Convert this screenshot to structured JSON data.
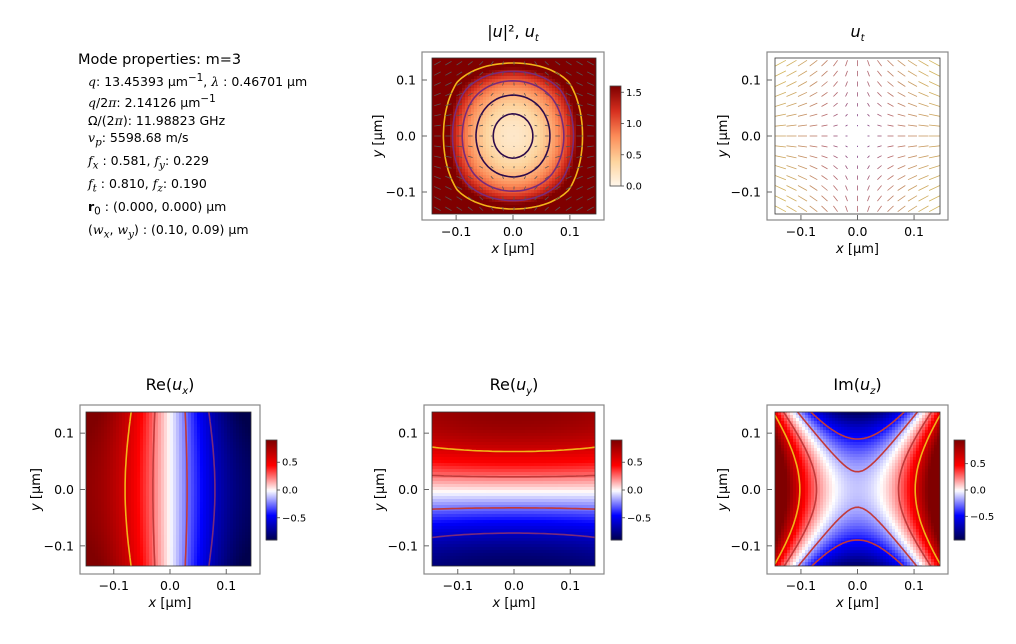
{
  "mode_properties": {
    "heading": "Mode properties: m=3",
    "rows": [
      {
        "html": "<i>q</i>: 13.45393 μm<sup>−1</sup>, <i>λ</i> :  0.46701 μm"
      },
      {
        "html": "<i>q</i>/2<i>π</i>: 2.14126 μm<sup>−1</sup>"
      },
      {
        "html": "Ω/(2<i>π</i>): 11.98823 GHz"
      },
      {
        "html": "<i>v<sub>p</sub></i>: 5598.68 m/s"
      },
      {
        "html": "<i>f<sub>x</sub></i> :  0.581, <i>f<sub>y</sub></i>: 0.229"
      },
      {
        "html": "<i>f<sub>t</sub></i> :  0.810, <i>f<sub>z</sub></i>: 0.190"
      },
      {
        "html": "<b>r</b><sub>0</sub> :  (0.000, 0.000) μm"
      },
      {
        "html": "(<i>w<sub>x</sub></i>, <i>w<sub>y</sub></i>) :  (0.10, 0.09) μm"
      }
    ]
  },
  "colors": {
    "hot_stops": [
      "#fff7ec",
      "#fdd49e",
      "#fc8d59",
      "#d7301f",
      "#7f0000"
    ],
    "seismic_stops": [
      "#00004c",
      "#0000ff",
      "#ffffff",
      "#ff0000",
      "#800000"
    ],
    "contour_a": "#2c0a4a",
    "contour_b": "#7a2a7a",
    "contour_c": "#c23a3a",
    "contour_d": "#f2b418"
  },
  "chart_data": [
    {
      "type": "heatmap",
      "field": "intensity",
      "title": "|u|², u_t",
      "title_html": "|<tspan font-style='italic'>u</tspan>|², <tspan font-style='italic'>u</tspan><tspan font-size='10' dy='4' font-style='italic'>t</tspan>",
      "xlabel": "x [μm]",
      "ylabel": "y [μm]",
      "xlim": [
        -0.16,
        0.16
      ],
      "ylim": [
        -0.15,
        0.15
      ],
      "xticks": [
        "−0.1",
        "0.0",
        "0.1"
      ],
      "xtick_values": [
        -0.1,
        0.0,
        0.1
      ],
      "yticks": [
        "−0.1",
        "0.0",
        "0.1"
      ],
      "ytick_values": [
        -0.1,
        0.0,
        0.1
      ],
      "colorbar": {
        "range": [
          0,
          1.6
        ],
        "ticks": [
          "0.0",
          "0.5",
          "1.0",
          "1.5"
        ],
        "tick_values": [
          0,
          0.5,
          1.0,
          1.5
        ]
      }
    },
    {
      "type": "quiver",
      "field": "transverse",
      "title": "u_t",
      "title_html": "<tspan font-style='italic'>u</tspan><tspan font-size='10' dy='4' font-style='italic'>t</tspan>",
      "xlabel": "x [μm]",
      "ylabel": "y [μm]",
      "xlim": [
        -0.16,
        0.16
      ],
      "ylim": [
        -0.15,
        0.15
      ],
      "xticks": [
        "−0.1",
        "0.0",
        "0.1"
      ],
      "xtick_values": [
        -0.1,
        0.0,
        0.1
      ],
      "yticks": [
        "−0.1",
        "0.0",
        "0.1"
      ],
      "ytick_values": [
        -0.1,
        0.0,
        0.1
      ]
    },
    {
      "type": "heatmap",
      "field": "re_ux",
      "title": "Re(u_x)",
      "title_html": "Re(<tspan font-style='italic'>u</tspan><tspan font-size='10' dy='4' font-style='italic'>x</tspan><tspan dy='-4'>)</tspan>",
      "xlabel": "x [μm]",
      "ylabel": "y [μm]",
      "xlim": [
        -0.16,
        0.16
      ],
      "ylim": [
        -0.15,
        0.15
      ],
      "xticks": [
        "−0.1",
        "0.0",
        "0.1"
      ],
      "xtick_values": [
        -0.1,
        0.0,
        0.1
      ],
      "yticks": [
        "−0.1",
        "0.0",
        "0.1"
      ],
      "ytick_values": [
        -0.1,
        0.0,
        0.1
      ],
      "colorbar": {
        "range": [
          -0.9,
          0.9
        ],
        "ticks": [
          "−0.5",
          "0.0",
          "0.5"
        ],
        "tick_values": [
          -0.5,
          0,
          0.5
        ]
      }
    },
    {
      "type": "heatmap",
      "field": "re_uy",
      "title": "Re(u_y)",
      "title_html": "Re(<tspan font-style='italic'>u</tspan><tspan font-size='10' dy='4' font-style='italic'>y</tspan><tspan dy='-4'>)</tspan>",
      "xlabel": "x [μm]",
      "ylabel": "y [μm]",
      "xlim": [
        -0.16,
        0.16
      ],
      "ylim": [
        -0.15,
        0.15
      ],
      "xticks": [
        "−0.1",
        "0.0",
        "0.1"
      ],
      "xtick_values": [
        -0.1,
        0.0,
        0.1
      ],
      "yticks": [
        "−0.1",
        "0.0",
        "0.1"
      ],
      "ytick_values": [
        -0.1,
        0.0,
        0.1
      ],
      "colorbar": {
        "range": [
          -0.9,
          0.9
        ],
        "ticks": [
          "−0.5",
          "0.0",
          "0.5"
        ],
        "tick_values": [
          -0.5,
          0,
          0.5
        ]
      }
    },
    {
      "type": "heatmap",
      "field": "im_uz",
      "title": "Im(u_z)",
      "title_html": "Im(<tspan font-style='italic'>u</tspan><tspan font-size='10' dy='4' font-style='italic'>z</tspan><tspan dy='-4'>)</tspan>",
      "xlabel": "x [μm]",
      "ylabel": "y [μm]",
      "xlim": [
        -0.16,
        0.16
      ],
      "ylim": [
        -0.15,
        0.15
      ],
      "xticks": [
        "−0.1",
        "0.0",
        "0.1"
      ],
      "xtick_values": [
        -0.1,
        0.0,
        0.1
      ],
      "yticks": [
        "−0.1",
        "0.0",
        "0.1"
      ],
      "ytick_values": [
        -0.1,
        0.0,
        0.1
      ],
      "colorbar": {
        "range": [
          -0.95,
          0.95
        ],
        "ticks": [
          "−0.5",
          "0.0",
          "0.5"
        ],
        "tick_values": [
          -0.5,
          0,
          0.5
        ]
      }
    }
  ]
}
